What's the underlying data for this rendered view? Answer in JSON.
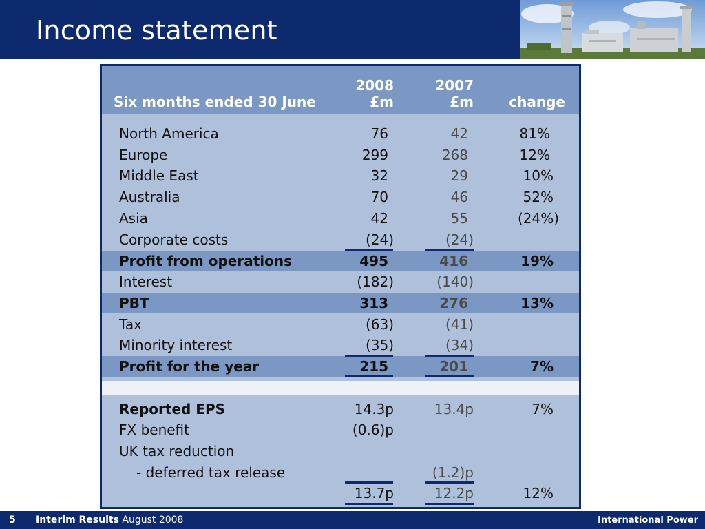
{
  "title": "Income statement",
  "table": {
    "header": {
      "label": "Six months ended 30 June",
      "col1_year": "2008",
      "col1_unit": "£m",
      "col2_year": "2007",
      "col2_unit": "£m",
      "col3": "change"
    },
    "rows": [
      {
        "label": "North America",
        "v2008": "76",
        "v2007": "42",
        "change": "81%"
      },
      {
        "label": "Europe",
        "v2008": "299",
        "v2007": "268",
        "change": "12%"
      },
      {
        "label": "Middle East",
        "v2008": "32",
        "v2007": "29",
        "change": "10%"
      },
      {
        "label": "Australia",
        "v2008": "70",
        "v2007": "46",
        "change": "52%"
      },
      {
        "label": "Asia",
        "v2008": "42",
        "v2007": "55",
        "change": "(24%)"
      },
      {
        "label": "Corporate costs",
        "v2008": "(24)",
        "v2007": "(24)",
        "change": ""
      },
      {
        "label": "Profit from operations",
        "v2008": "495",
        "v2007": "416",
        "change": "19%"
      },
      {
        "label": "Interest",
        "v2008": "(182)",
        "v2007": "(140)",
        "change": ""
      },
      {
        "label": "PBT",
        "v2008": "313",
        "v2007": "276",
        "change": "13%"
      },
      {
        "label": "Tax",
        "v2008": "(63)",
        "v2007": "(41)",
        "change": ""
      },
      {
        "label": "Minority interest",
        "v2008": "(35)",
        "v2007": "(34)",
        "change": ""
      },
      {
        "label": "Profit for the year",
        "v2008": "215",
        "v2007": "201",
        "change": "7%"
      }
    ],
    "eps_rows": [
      {
        "label": "Reported EPS",
        "v2008": "14.3p",
        "v2007": "13.4p",
        "change": "7%"
      },
      {
        "label": "FX benefit",
        "v2008": "(0.6)p",
        "v2007": "",
        "change": ""
      },
      {
        "label": "UK tax reduction",
        "v2008": "",
        "v2007": "",
        "change": ""
      },
      {
        "label": "- deferred tax release",
        "v2008": "",
        "v2007": "(1.2)p",
        "change": ""
      },
      {
        "label": "",
        "v2008": "13.7p",
        "v2007": "12.2p",
        "change": "12%"
      }
    ]
  },
  "footer": {
    "page_number": "5",
    "section": "Interim Results",
    "date": "August 2008",
    "brand": "International Power"
  },
  "colors": {
    "navy": "#0d2a6e",
    "panel": "#afc0db",
    "highlight": "#7b97c3"
  }
}
